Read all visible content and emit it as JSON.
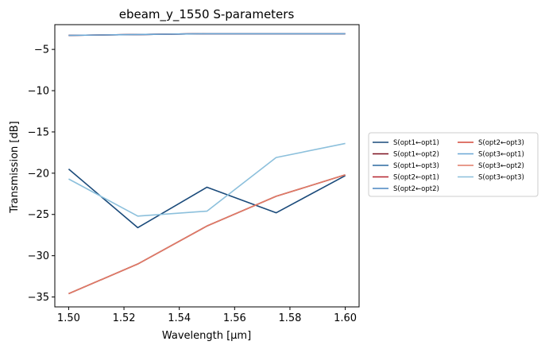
{
  "chart_data": {
    "type": "line",
    "title": "ebeam_y_1550 S-parameters",
    "xlabel": "Wavelength [μm]",
    "ylabel": "Transmission [dB]",
    "xlim": [
      1.495,
      1.605
    ],
    "ylim": [
      -36.2,
      -2.0
    ],
    "x": [
      1.5,
      1.525,
      1.55,
      1.575,
      1.6
    ],
    "xticks": [
      1.5,
      1.52,
      1.54,
      1.56,
      1.58,
      1.6
    ],
    "xtick_labels": [
      "1.50",
      "1.52",
      "1.54",
      "1.56",
      "1.58",
      "1.60"
    ],
    "yticks": [
      -35,
      -30,
      -25,
      -20,
      -15,
      -10,
      -5
    ],
    "ytick_labels": [
      "−35",
      "−30",
      "−25",
      "−20",
      "−15",
      "−10",
      "−5"
    ],
    "grid": false,
    "legend_position": "outside-right",
    "series": [
      {
        "name": "S(opt1←opt1)",
        "color": "#1a4a7a",
        "values": [
          -19.5,
          -26.6,
          -21.7,
          -24.8,
          -20.3
        ]
      },
      {
        "name": "S(opt1←opt2)",
        "color": "#7a0f1e",
        "values": [
          -3.3,
          -3.2,
          -3.1,
          -3.1,
          -3.1
        ]
      },
      {
        "name": "S(opt1←opt3)",
        "color": "#2b6aa0",
        "values": [
          -3.3,
          -3.2,
          -3.1,
          -3.1,
          -3.1
        ]
      },
      {
        "name": "S(opt2←opt1)",
        "color": "#b5232e",
        "values": [
          -3.3,
          -3.2,
          -3.1,
          -3.1,
          -3.1
        ]
      },
      {
        "name": "S(opt2←opt2)",
        "color": "#4a86c0",
        "values": [
          -34.6,
          -31.0,
          -26.4,
          -22.8,
          -20.2
        ]
      },
      {
        "name": "S(opt2←opt3)",
        "color": "#d4483a",
        "values": [
          -34.6,
          -31.0,
          -26.4,
          -22.8,
          -20.2
        ]
      },
      {
        "name": "S(opt3←opt1)",
        "color": "#6aa8d6",
        "values": [
          -3.3,
          -3.2,
          -3.1,
          -3.1,
          -3.1
        ]
      },
      {
        "name": "S(opt3←opt2)",
        "color": "#e07a66",
        "values": [
          -34.6,
          -31.0,
          -26.4,
          -22.8,
          -20.2
        ]
      },
      {
        "name": "S(opt3←opt3)",
        "color": "#8cc0dc",
        "values": [
          -20.7,
          -25.2,
          -24.6,
          -18.1,
          -16.4
        ]
      }
    ]
  }
}
